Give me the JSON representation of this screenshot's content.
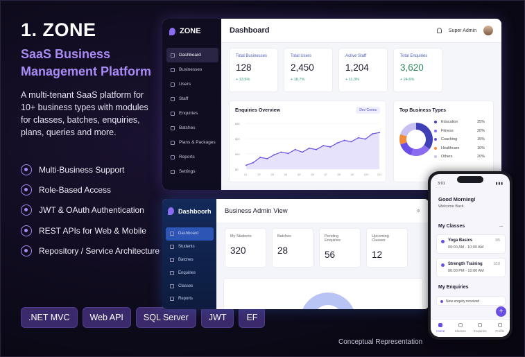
{
  "hero": {
    "title": "1. ZONE",
    "subtitle": "SaaS Business Management Platform",
    "description": "A multi-tenant SaaS platform for 10+ business types with modules for classes, batches, enquiries, plans, queries and more."
  },
  "features": [
    "Multi-Business Support",
    "Role-Based Access",
    "JWT & OAuth Authentication",
    "REST APIs for Web & Mobile",
    "Repository / Service Architecture"
  ],
  "tags": [
    ".NET MVC",
    "Web API",
    "SQL Server",
    "JWT",
    "EF"
  ],
  "caption": "Conceptual Representation",
  "admin_dashboard": {
    "brand": "ZONE",
    "page_title": "Dashboard",
    "user": "Super Admin",
    "nav": [
      "Dashboard",
      "Businesses",
      "Users",
      "Staff",
      "Enquiries",
      "Batches",
      "Plans & Packages",
      "Reports",
      "Settings"
    ],
    "stats": [
      {
        "label": "Total Businesses",
        "value": "128",
        "delta": "+ 13.5%"
      },
      {
        "label": "Total Users",
        "value": "2,450",
        "delta": "+ 18.7%"
      },
      {
        "label": "Active Staff",
        "value": "1,204",
        "delta": "+ 11.3%"
      },
      {
        "label": "Total Enquiries",
        "value": "3,620",
        "delta": "+ 24.6%"
      }
    ],
    "enquiries_title": "Enquiries Overview",
    "enquiries_filter": "Dev Conns",
    "top_types_title": "Top Business Types",
    "top_types": [
      {
        "name": "Education",
        "pct": "35%",
        "value": 35,
        "color": "#3f3fb8"
      },
      {
        "name": "Fitness",
        "pct": "20%",
        "value": 20,
        "color": "#8b6cf0"
      },
      {
        "name": "Coaching",
        "pct": "15%",
        "value": 15,
        "color": "#6a4ee6"
      },
      {
        "name": "Healthcare",
        "pct": "10%",
        "value": 10,
        "color": "#f08a3c"
      },
      {
        "name": "Others",
        "pct": "20%",
        "value": 20,
        "color": "#c7c0f0"
      }
    ]
  },
  "chart_data": {
    "type": "area",
    "title": "Enquiries Overview",
    "ylabel": "",
    "xlabel": "",
    "y_ticks": [
      "$30",
      "$20",
      "$10",
      "$0"
    ],
    "x_ticks": [
      "Q1",
      "Q2",
      "Q3",
      "Q4",
      "Q5",
      "Q6",
      "Q7",
      "Q8",
      "Q9",
      "Q10",
      "Q11"
    ],
    "ylim": [
      0,
      35
    ],
    "values": [
      3,
      5,
      9,
      8,
      11,
      13,
      12,
      15,
      13,
      16,
      15,
      18,
      17,
      20,
      22,
      21,
      24,
      23,
      27,
      28
    ]
  },
  "business_dashboard": {
    "brand": "Dashboorh",
    "page_title": "Business Admin View",
    "nav": [
      "Dashboard",
      "Students",
      "Batches",
      "Enquiries",
      "Classes",
      "Reports"
    ],
    "stats": [
      {
        "label": "My Students",
        "value": "320"
      },
      {
        "label": "Batches",
        "value": "28"
      },
      {
        "label": "Pending Enquiries",
        "value": "56"
      },
      {
        "label": "Upcoming Classes",
        "value": "12"
      }
    ]
  },
  "mobile": {
    "time": "3:01",
    "greeting": "Good Morning!",
    "greeting_sub": "Welcome Back",
    "classes_title": "My Classes",
    "classes": [
      {
        "name": "Yoga Basics",
        "time": "09:00 AM - 10:00 AM",
        "count": "3/5"
      },
      {
        "name": "Strength Training",
        "time": "06:00 PM - 10:00 AM",
        "count": "1/10"
      }
    ],
    "enquiries_title": "My Enquiries",
    "enquiry_text": "New enquiry received",
    "tabs": [
      "Home",
      "Classes",
      "Enquiries",
      "Profile"
    ]
  }
}
